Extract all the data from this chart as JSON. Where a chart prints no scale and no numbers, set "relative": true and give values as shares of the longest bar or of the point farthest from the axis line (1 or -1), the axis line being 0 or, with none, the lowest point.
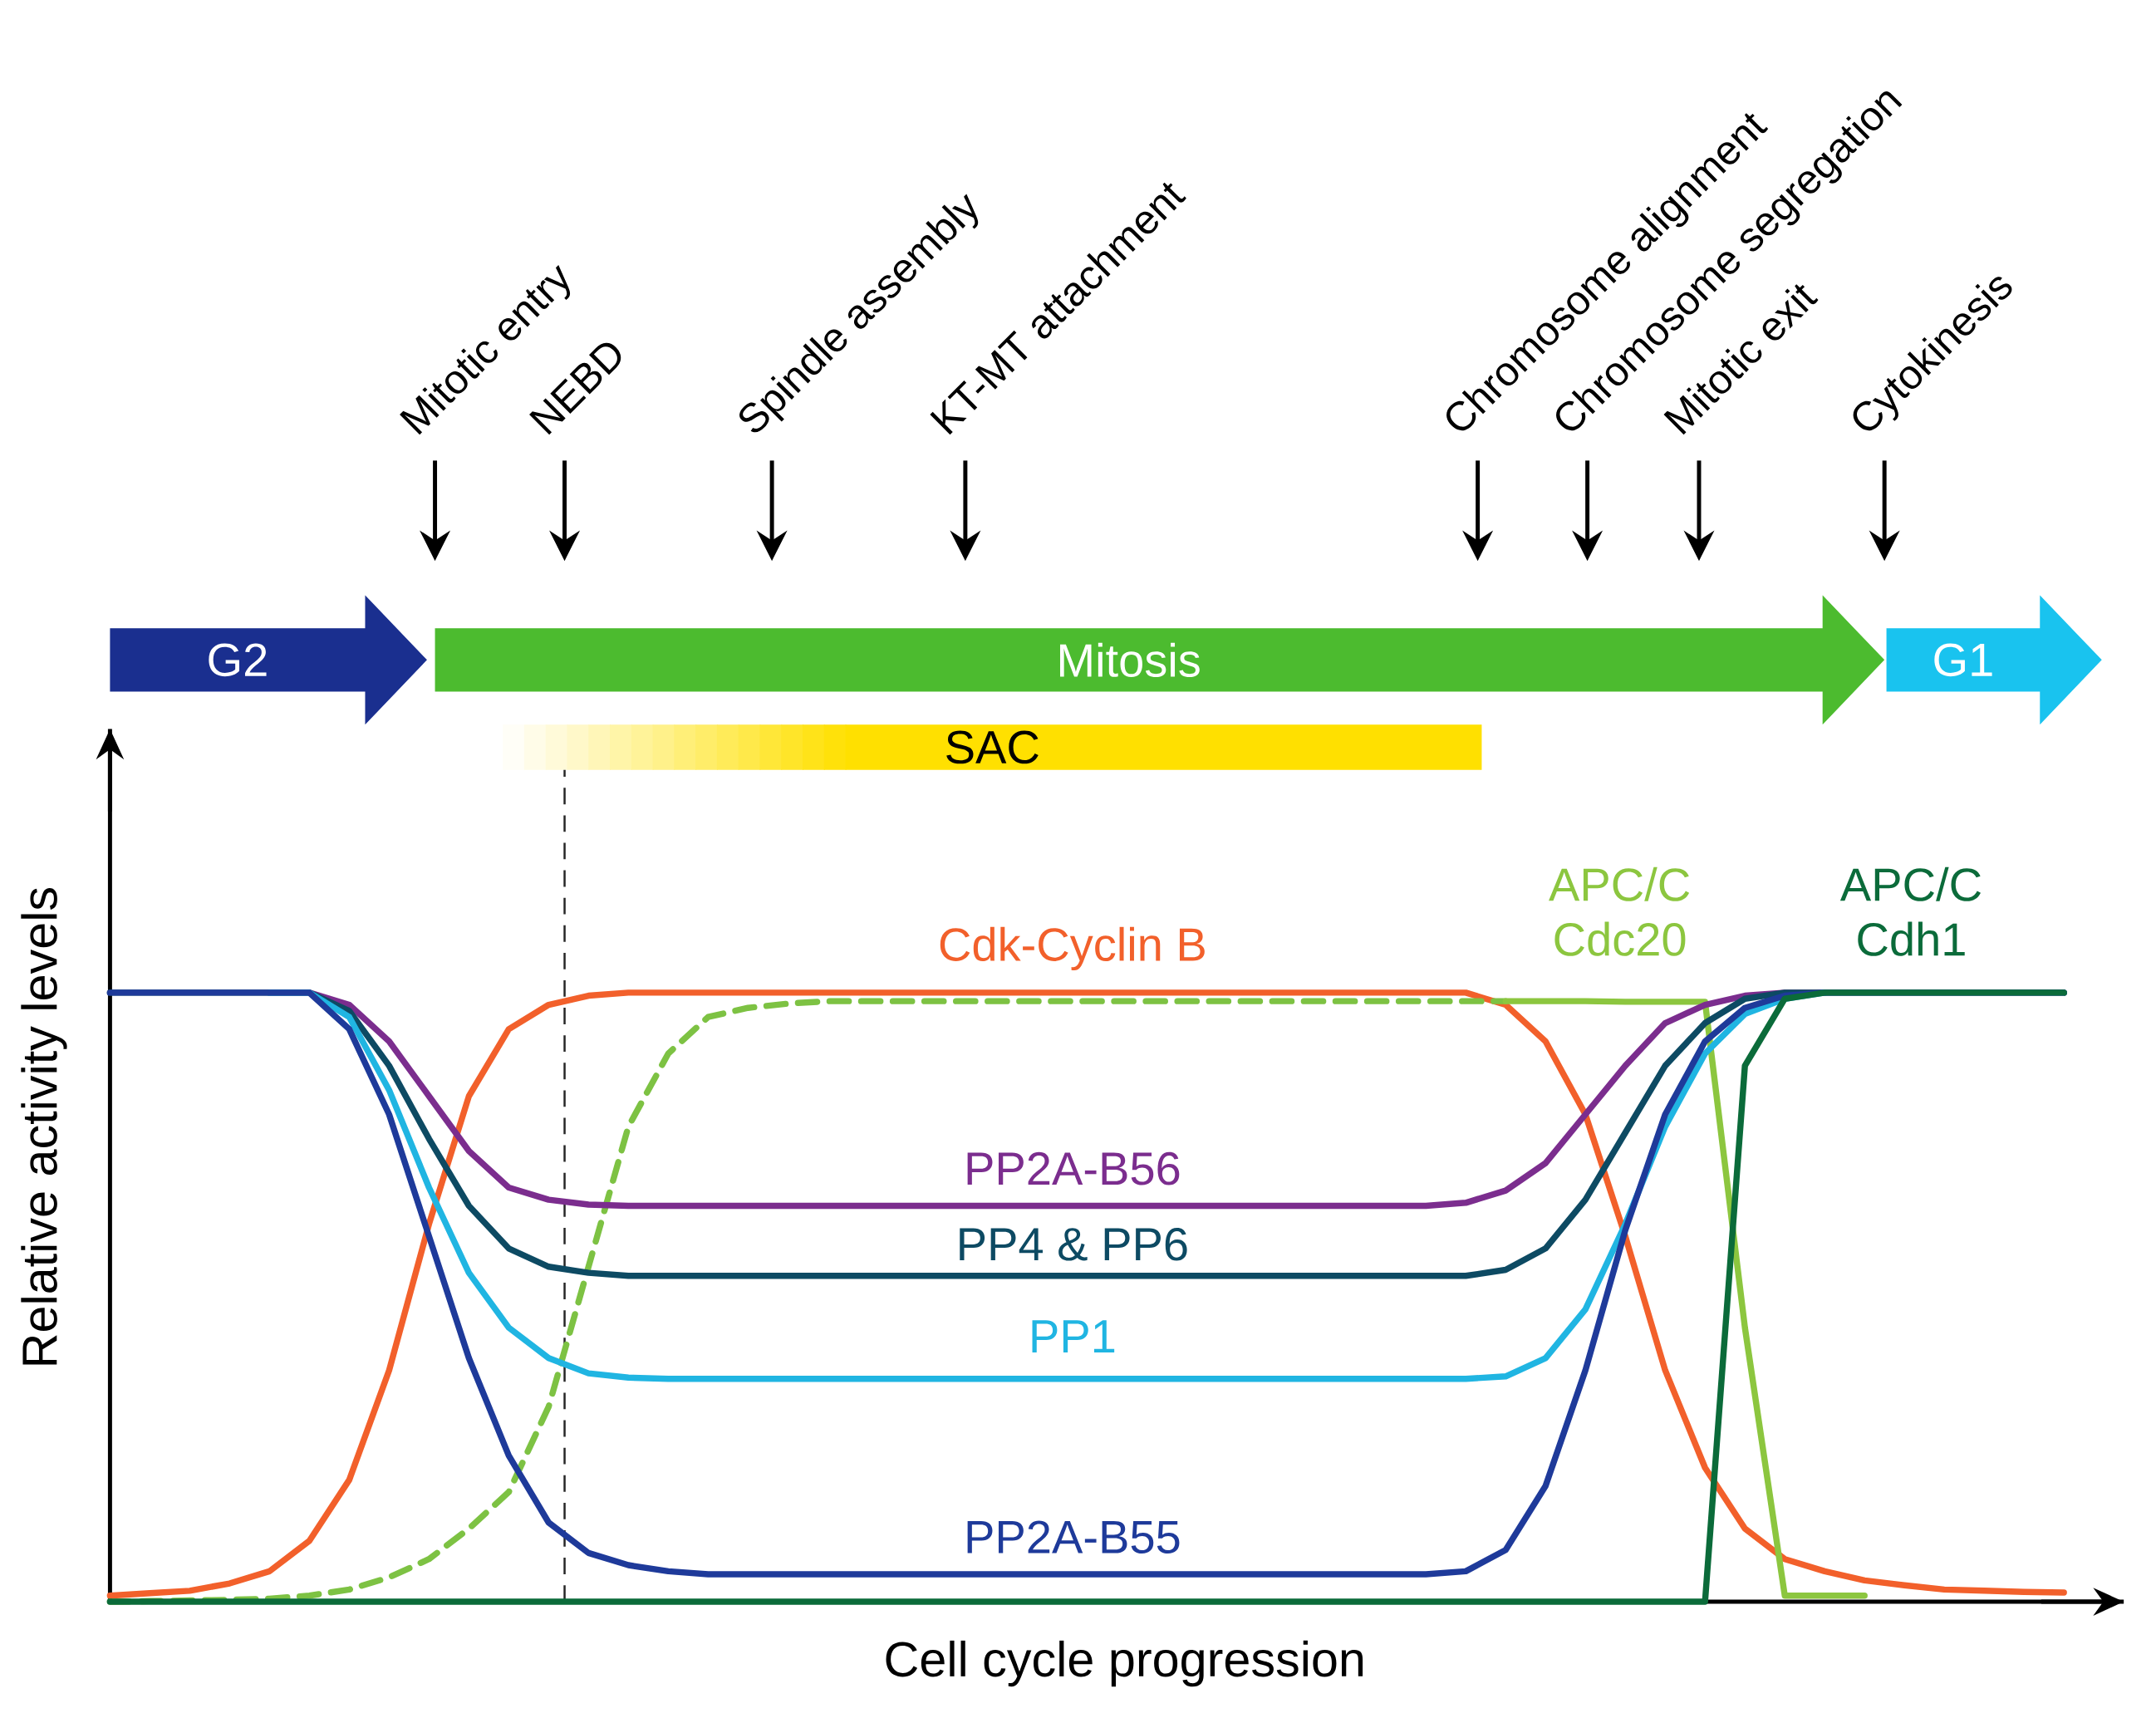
{
  "chart_data": {
    "type": "line",
    "relative": true,
    "xlabel": "Cell cycle progression",
    "ylabel": "Relative activity levels",
    "marker": "none",
    "categories": [
      null,
      null,
      null,
      null,
      null,
      null,
      null,
      null,
      null,
      null,
      null,
      null,
      null,
      null,
      null,
      null,
      null,
      null,
      null,
      null,
      null,
      null,
      null,
      null,
      null,
      null,
      null,
      null,
      null,
      null,
      null,
      null,
      null,
      null,
      null,
      null,
      null,
      null,
      null,
      null,
      null,
      null,
      null,
      null,
      null,
      null,
      null,
      null,
      null,
      null
    ],
    "series": [
      {
        "name": "Cdk-Cyclin B",
        "color": "#f2602b",
        "values": [
          0.01,
          0.014,
          0.018,
          0.03,
          0.05,
          0.1,
          0.2,
          0.38,
          0.62,
          0.83,
          0.94,
          0.98,
          0.995,
          1.0,
          1.0,
          1.0,
          1.0,
          1.0,
          1.0,
          1.0,
          1.0,
          1.0,
          1.0,
          1.0,
          1.0,
          1.0,
          1.0,
          1.0,
          1.0,
          1.0,
          1.0,
          1.0,
          1.0,
          1.0,
          1.0,
          0.98,
          0.92,
          0.8,
          0.6,
          0.38,
          0.22,
          0.12,
          0.07,
          0.05,
          0.035,
          0.027,
          0.02,
          0.018,
          0.016,
          0.015
        ]
      },
      {
        "color": "#7dc243",
        "line_style": "dashed",
        "values": [
          0.0,
          0.001,
          0.002,
          0.003,
          0.005,
          0.01,
          0.02,
          0.04,
          0.07,
          0.12,
          0.18,
          0.32,
          0.55,
          0.78,
          0.9,
          0.96,
          0.975,
          0.982,
          0.986,
          0.986,
          0.986,
          0.986,
          0.986,
          0.986,
          0.986,
          0.986,
          0.986,
          0.986,
          0.986,
          0.986,
          0.986,
          0.986,
          0.986,
          0.986,
          0.986,
          0.986,
          null,
          null,
          null,
          null,
          null,
          null,
          null,
          null,
          null,
          null,
          null,
          null,
          null,
          null
        ]
      },
      {
        "name": "APC/C Cdc20",
        "color": "#8cc63f",
        "values": [
          null,
          null,
          null,
          null,
          null,
          null,
          null,
          null,
          null,
          null,
          null,
          null,
          null,
          null,
          null,
          null,
          null,
          null,
          null,
          null,
          null,
          null,
          null,
          null,
          null,
          null,
          null,
          null,
          null,
          null,
          null,
          null,
          null,
          null,
          null,
          0.986,
          0.986,
          0.986,
          0.985,
          0.985,
          0.985,
          0.45,
          0.01,
          0.01,
          0.01,
          null,
          null,
          null,
          null,
          null
        ]
      },
      {
        "name": "PP2A-B56",
        "color": "#7b2d8e",
        "values": [
          null,
          null,
          null,
          null,
          1,
          1,
          0.98,
          0.92,
          0.83,
          0.74,
          0.68,
          0.66,
          0.652,
          0.65,
          0.65,
          0.65,
          0.65,
          0.65,
          0.65,
          0.65,
          0.65,
          0.65,
          0.65,
          0.65,
          0.65,
          0.65,
          0.65,
          0.65,
          0.65,
          0.65,
          0.65,
          0.65,
          0.65,
          0.65,
          0.655,
          0.675,
          0.72,
          0.8,
          0.88,
          0.95,
          0.98,
          0.995,
          1,
          1,
          null,
          null,
          null,
          null,
          null,
          null
        ]
      },
      {
        "name": "PP4 & PP6",
        "color": "#0d4a63",
        "values": [
          1,
          1,
          1,
          1,
          1,
          1,
          0.97,
          0.88,
          0.76,
          0.65,
          0.58,
          0.55,
          0.54,
          0.535,
          0.535,
          0.535,
          0.535,
          0.535,
          0.535,
          0.535,
          0.535,
          0.535,
          0.535,
          0.535,
          0.535,
          0.535,
          0.535,
          0.535,
          0.535,
          0.535,
          0.535,
          0.535,
          0.535,
          0.535,
          0.535,
          0.545,
          0.58,
          0.66,
          0.77,
          0.88,
          0.95,
          0.99,
          1,
          1,
          1,
          1,
          1,
          1,
          1,
          1
        ]
      },
      {
        "name": "PP1",
        "color": "#20b5e2",
        "values": [
          null,
          null,
          null,
          null,
          1,
          1,
          0.96,
          0.84,
          0.68,
          0.54,
          0.45,
          0.4,
          0.375,
          0.368,
          0.366,
          0.366,
          0.366,
          0.366,
          0.366,
          0.366,
          0.366,
          0.366,
          0.366,
          0.366,
          0.366,
          0.366,
          0.366,
          0.366,
          0.366,
          0.366,
          0.366,
          0.366,
          0.366,
          0.366,
          0.366,
          0.37,
          0.4,
          0.48,
          0.62,
          0.78,
          0.9,
          0.965,
          0.99,
          1,
          null,
          null,
          null,
          null,
          null,
          null
        ]
      },
      {
        "name": "PP2A-B55",
        "color": "#1e3a9a",
        "values": [
          1,
          1,
          1,
          1,
          1,
          1,
          0.94,
          0.8,
          0.6,
          0.4,
          0.24,
          0.13,
          0.08,
          0.06,
          0.05,
          0.045,
          0.045,
          0.045,
          0.045,
          0.045,
          0.045,
          0.045,
          0.045,
          0.045,
          0.045,
          0.045,
          0.045,
          0.045,
          0.045,
          0.045,
          0.045,
          0.045,
          0.045,
          0.045,
          0.05,
          0.085,
          0.19,
          0.38,
          0.61,
          0.8,
          0.92,
          0.975,
          0.995,
          1,
          1,
          1,
          1,
          1,
          1,
          1
        ]
      },
      {
        "name": "APC/C Cdh1",
        "color": "#0b6b3a",
        "values": [
          0,
          0,
          0,
          0,
          0,
          0,
          0,
          0,
          0,
          0,
          0,
          0,
          0,
          0,
          0,
          0,
          0,
          0,
          0,
          0,
          0,
          0,
          0,
          0,
          0,
          0,
          0,
          0,
          0,
          0,
          0,
          0,
          0,
          0,
          0,
          0,
          0,
          0,
          0,
          0,
          0,
          0.88,
          0.99,
          1,
          1,
          1,
          1,
          1,
          1,
          1
        ]
      }
    ],
    "annotations": [
      "Mitotic entry",
      "NEBD",
      "Spindle assembly",
      "KT-MT attachment",
      "Chromosome alignment",
      "Chromosome segregation",
      "Mitotic exit",
      "Cytokinesis",
      "G2",
      "Mitosis",
      "G1",
      "SAC"
    ]
  }
}
